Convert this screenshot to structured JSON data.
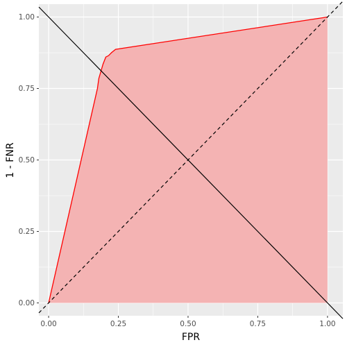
{
  "chart_data": {
    "type": "area",
    "title": "",
    "xlabel": "FPR",
    "ylabel": "1 - FNR",
    "xlim": [
      -0.035,
      1.055
    ],
    "ylim": [
      -0.045,
      1.045
    ],
    "grid": true,
    "x_ticks": [
      {
        "value": 0,
        "label": "0.00"
      },
      {
        "value": 0.25,
        "label": "0.25"
      },
      {
        "value": 0.5,
        "label": "0.50"
      },
      {
        "value": 0.75,
        "label": "0.75"
      },
      {
        "value": 1,
        "label": "1.00"
      }
    ],
    "y_ticks": [
      {
        "value": 0,
        "label": "0.00"
      },
      {
        "value": 0.25,
        "label": "0.25"
      },
      {
        "value": 0.5,
        "label": "0.50"
      },
      {
        "value": 0.75,
        "label": "0.75"
      },
      {
        "value": 1,
        "label": "1.00"
      }
    ],
    "series": [
      {
        "style": "line with shaded area",
        "values": [
          {
            "x": 0.0,
            "y": 0.0
          },
          {
            "x": 0.175,
            "y": 0.75
          },
          {
            "x": 0.18,
            "y": 0.785
          },
          {
            "x": 0.195,
            "y": 0.835
          },
          {
            "x": 0.205,
            "y": 0.86
          },
          {
            "x": 0.215,
            "y": 0.865
          },
          {
            "x": 0.225,
            "y": 0.875
          },
          {
            "x": 0.24,
            "y": 0.887
          },
          {
            "x": 1.0,
            "y": 1.0
          }
        ]
      }
    ],
    "reference_lines": [
      {
        "style": "dashed",
        "slope": 1,
        "intercept": 0
      },
      {
        "style": "solid",
        "slope": -1,
        "intercept": 1
      }
    ],
    "colors": {
      "panel": "#ebebeb",
      "grid": "#ffffff",
      "curve": "#ff0000",
      "fill": "#f4b3b3",
      "reference": "#000000"
    }
  }
}
